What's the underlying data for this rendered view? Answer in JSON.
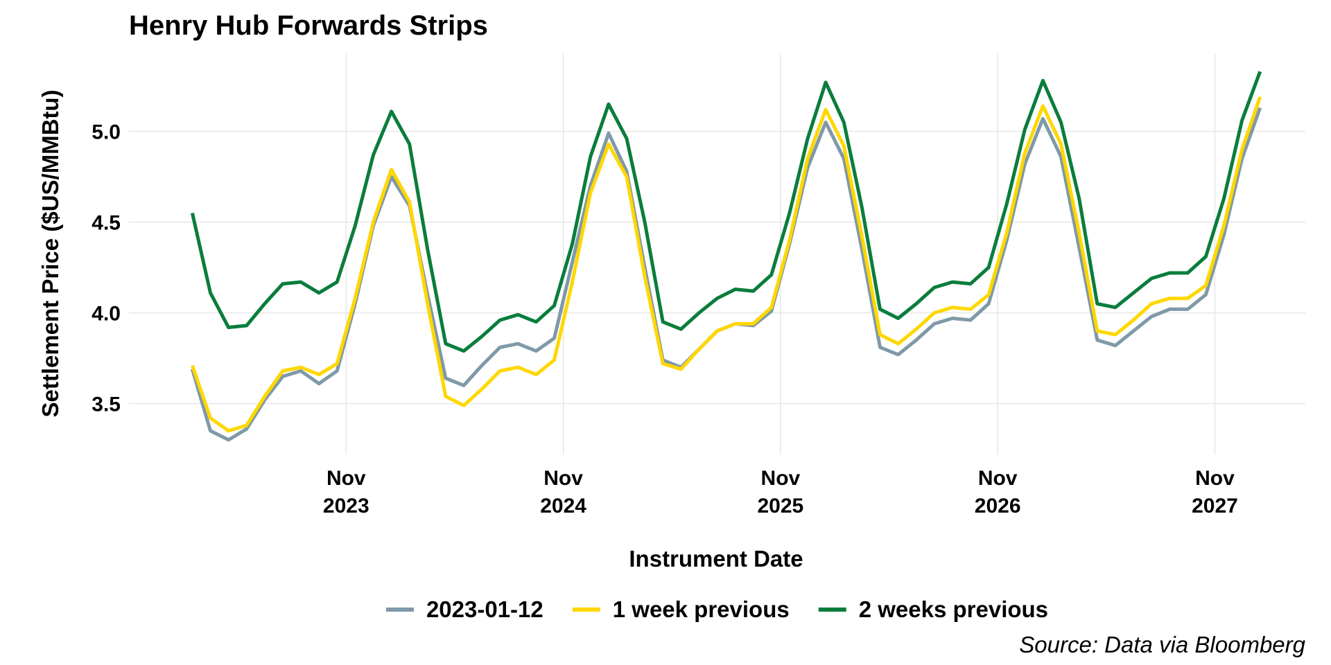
{
  "chart_data": {
    "type": "line",
    "title": "Henry Hub Forwards Strips",
    "x_label": "Instrument Date",
    "y_label": "Settlement Price ($US/MMBtu)",
    "source": "Source: Data via Bloomberg",
    "x": [
      "2023-02",
      "2023-03",
      "2023-04",
      "2023-05",
      "2023-06",
      "2023-07",
      "2023-08",
      "2023-09",
      "2023-10",
      "2023-11",
      "2023-12",
      "2024-01",
      "2024-02",
      "2024-03",
      "2024-04",
      "2024-05",
      "2024-06",
      "2024-07",
      "2024-08",
      "2024-09",
      "2024-10",
      "2024-11",
      "2024-12",
      "2025-01",
      "2025-02",
      "2025-03",
      "2025-04",
      "2025-05",
      "2025-06",
      "2025-07",
      "2025-08",
      "2025-09",
      "2025-10",
      "2025-11",
      "2025-12",
      "2026-01",
      "2026-02",
      "2026-03",
      "2026-04",
      "2026-05",
      "2026-06",
      "2026-07",
      "2026-08",
      "2026-09",
      "2026-10",
      "2026-11",
      "2026-12",
      "2027-01",
      "2027-02",
      "2027-03",
      "2027-04",
      "2027-05",
      "2027-06",
      "2027-07",
      "2027-08",
      "2027-09",
      "2027-10",
      "2027-11",
      "2027-12",
      "2028-01"
    ],
    "series": [
      {
        "name": "2023-01-12",
        "color": "#7f99a8",
        "values": [
          3.69,
          3.35,
          3.3,
          3.36,
          3.52,
          3.65,
          3.68,
          3.61,
          3.68,
          4.05,
          4.48,
          4.75,
          4.59,
          4.1,
          3.64,
          3.6,
          3.71,
          3.81,
          3.83,
          3.79,
          3.86,
          4.28,
          4.7,
          4.99,
          4.78,
          4.25,
          3.74,
          3.7,
          3.8,
          3.9,
          3.94,
          3.93,
          4.01,
          4.38,
          4.8,
          5.05,
          4.85,
          4.35,
          3.81,
          3.77,
          3.85,
          3.94,
          3.97,
          3.96,
          4.05,
          4.4,
          4.82,
          5.07,
          4.86,
          4.36,
          3.85,
          3.82,
          3.9,
          3.98,
          4.02,
          4.02,
          4.1,
          4.43,
          4.85,
          5.13
        ]
      },
      {
        "name": "1 week previous",
        "color": "#ffd700",
        "values": [
          3.71,
          3.42,
          3.35,
          3.38,
          3.54,
          3.68,
          3.7,
          3.66,
          3.72,
          4.08,
          4.5,
          4.79,
          4.61,
          4.05,
          3.54,
          3.49,
          3.58,
          3.68,
          3.7,
          3.66,
          3.74,
          4.17,
          4.66,
          4.93,
          4.75,
          4.2,
          3.72,
          3.69,
          3.8,
          3.9,
          3.94,
          3.94,
          4.03,
          4.4,
          4.85,
          5.12,
          4.92,
          4.42,
          3.88,
          3.83,
          3.91,
          4.0,
          4.03,
          4.02,
          4.1,
          4.44,
          4.88,
          5.14,
          4.93,
          4.44,
          3.9,
          3.88,
          3.96,
          4.05,
          4.08,
          4.08,
          4.15,
          4.48,
          4.9,
          5.19
        ]
      },
      {
        "name": "2 weeks previous",
        "color": "#0a7d3c",
        "values": [
          4.55,
          4.11,
          3.92,
          3.93,
          4.05,
          4.16,
          4.17,
          4.11,
          4.17,
          4.48,
          4.87,
          5.11,
          4.93,
          4.35,
          3.83,
          3.79,
          3.87,
          3.96,
          3.99,
          3.95,
          4.04,
          4.38,
          4.86,
          5.15,
          4.96,
          4.5,
          3.95,
          3.91,
          4.0,
          4.08,
          4.13,
          4.12,
          4.21,
          4.55,
          4.96,
          5.27,
          5.05,
          4.58,
          4.02,
          3.97,
          4.05,
          4.14,
          4.17,
          4.16,
          4.25,
          4.6,
          5.01,
          5.28,
          5.05,
          4.63,
          4.05,
          4.03,
          4.11,
          4.19,
          4.22,
          4.22,
          4.31,
          4.63,
          5.06,
          5.33
        ]
      }
    ],
    "xlim": [
      "2022-11",
      "2028-04"
    ],
    "xticks": [
      {
        "value": "2023-11",
        "label": [
          "Nov",
          "2023"
        ]
      },
      {
        "value": "2024-11",
        "label": [
          "Nov",
          "2024"
        ]
      },
      {
        "value": "2025-11",
        "label": [
          "Nov",
          "2025"
        ]
      },
      {
        "value": "2026-11",
        "label": [
          "Nov",
          "2026"
        ]
      },
      {
        "value": "2027-11",
        "label": [
          "Nov",
          "2027"
        ]
      }
    ],
    "ylim": [
      3.22,
      5.43
    ],
    "yticks": [
      {
        "value": 3.5,
        "label": "3.5"
      },
      {
        "value": 4,
        "label": "4.0"
      },
      {
        "value": 4.5,
        "label": "4.5"
      },
      {
        "value": 5,
        "label": "5.0"
      }
    ],
    "grid": true,
    "legend": "bottom"
  }
}
